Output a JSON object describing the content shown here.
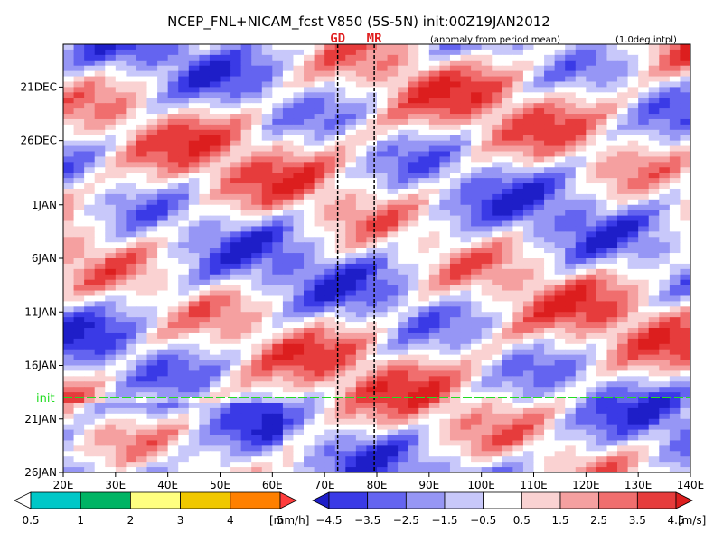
{
  "chart_data": {
    "type": "heatmap",
    "title": "NCEP_FNL+NICAM_fcst V850 (5S-5N) init:00Z19JAN2012",
    "subtitle_left": "(anomaly from period mean)",
    "subtitle_right": "(1.0deg intpl)",
    "xlabel": "",
    "ylabel": "",
    "x_ticks": [
      "20E",
      "30E",
      "40E",
      "50E",
      "60E",
      "70E",
      "80E",
      "90E",
      "100E",
      "110E",
      "120E",
      "130E",
      "140E"
    ],
    "y_ticks": [
      "21DEC",
      "26DEC",
      "1JAN",
      "6JAN",
      "11JAN",
      "16JAN",
      "21JAN",
      "26JAN"
    ],
    "y_tick_days": [
      3,
      8,
      14,
      19,
      24,
      29,
      34,
      39
    ],
    "x_range": [
      20,
      140
    ],
    "y_range_days": [
      -1,
      39
    ],
    "init_line": {
      "label": "init",
      "day": 32,
      "color": "#22dd22"
    },
    "markers": [
      {
        "label": "GD",
        "x": 72.5
      },
      {
        "label": "MR",
        "x": 79.5
      }
    ],
    "field_description": "V850 anomaly (m/s), alternating red (positive) and blue (negative) diagonal bands with black contours",
    "rain_colorbar": {
      "unit": "[mm/h]",
      "labels": [
        "0.5",
        "1",
        "2",
        "3",
        "4",
        "5"
      ],
      "colors": [
        "#ffffff",
        "#00c8c8",
        "#00b464",
        "#ffff80",
        "#f0c800",
        "#ff8000",
        "#ff3c3c"
      ]
    },
    "wind_colorbar": {
      "unit": "[m/s]",
      "labels": [
        "−4.5",
        "−3.5",
        "−2.5",
        "−1.5",
        "−0.5",
        "0.5",
        "1.5",
        "2.5",
        "3.5",
        "4.5"
      ],
      "colors": [
        "#1e1ec8",
        "#3a3ae6",
        "#6464f0",
        "#9696f5",
        "#c8c8fa",
        "#ffffff",
        "#fad2d2",
        "#f5a0a0",
        "#f06e6e",
        "#e63c3c",
        "#dc1e1e"
      ]
    }
  }
}
